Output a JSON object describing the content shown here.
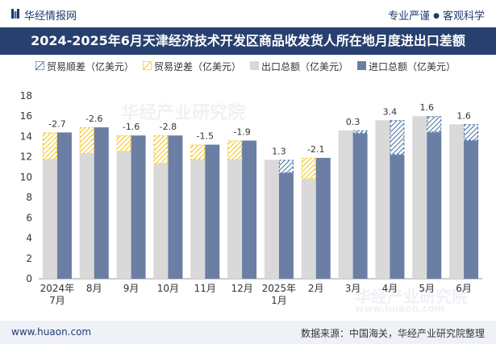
{
  "header": {
    "brand": "华经情报网",
    "tag_left": "专业严谨",
    "separator": "●",
    "tag_right": "客观科学"
  },
  "watermarks": {
    "center": "华经产业研究院",
    "bottom": "华经产业研究院",
    "url": "www.huaon.com"
  },
  "footer": {
    "website": "www.huaon.com",
    "source": "数据来源：中国海关，华经产业研究院整理"
  },
  "colors": {
    "export": "#d9d9d9",
    "import": "#6b7ea3",
    "surplus": "#4a6fa5",
    "deficit": "#f5c518",
    "title_bg": "#27406f"
  },
  "chart_data": {
    "type": "bar",
    "title": "2024-2025年6月天津经济技术开发区商品收发货人所在地月度进出口差额",
    "legend": [
      "贸易顺差（亿美元）",
      "贸易逆差（亿美元）",
      "出口总额（亿美元）",
      "进口总额（亿美元）"
    ],
    "categories": [
      "2024年\n7月",
      "8月",
      "9月",
      "10月",
      "11月",
      "12月",
      "2025年\n1月",
      "2月",
      "3月",
      "4月",
      "5月",
      "6月"
    ],
    "ylim": [
      0,
      18
    ],
    "yticks": [
      0,
      2,
      4,
      6,
      8,
      10,
      12,
      14,
      16,
      18
    ],
    "series": [
      {
        "name": "出口总额（亿美元）",
        "values": [
          11.7,
          12.3,
          12.5,
          11.3,
          11.7,
          11.7,
          11.7,
          9.8,
          14.6,
          15.6,
          16.0,
          15.2
        ]
      },
      {
        "name": "进口总额（亿美元）",
        "values": [
          14.4,
          14.9,
          14.1,
          14.1,
          13.2,
          13.6,
          10.4,
          11.9,
          14.3,
          12.2,
          14.4,
          13.6
        ]
      }
    ],
    "balance_labels": [
      "-2.7",
      "-2.6",
      "-1.6",
      "-2.8",
      "-1.5",
      "-1.9",
      "1.3",
      "-2.1",
      "0.3",
      "3.4",
      "1.6",
      "1.6"
    ]
  }
}
